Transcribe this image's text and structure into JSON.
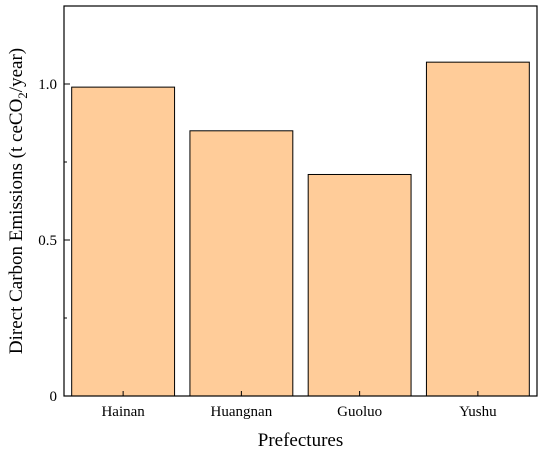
{
  "chart_data": {
    "type": "bar",
    "title": "",
    "xlabel": "Prefectures",
    "ylabel_parts": [
      "Direct Carbon Emissions (t ceCO",
      "2",
      "/year)"
    ],
    "categories": [
      "Hainan",
      "Huangnan",
      "Guoluo",
      "Yushu"
    ],
    "values": [
      0.99,
      0.85,
      0.71,
      1.07
    ],
    "ylim": [
      0,
      1.25
    ],
    "yticks": [
      0,
      0.5,
      1.0
    ],
    "ytick_labels": [
      "0",
      "0.5",
      "1.0"
    ],
    "bar_color": "#FFCC99",
    "grid": false
  }
}
